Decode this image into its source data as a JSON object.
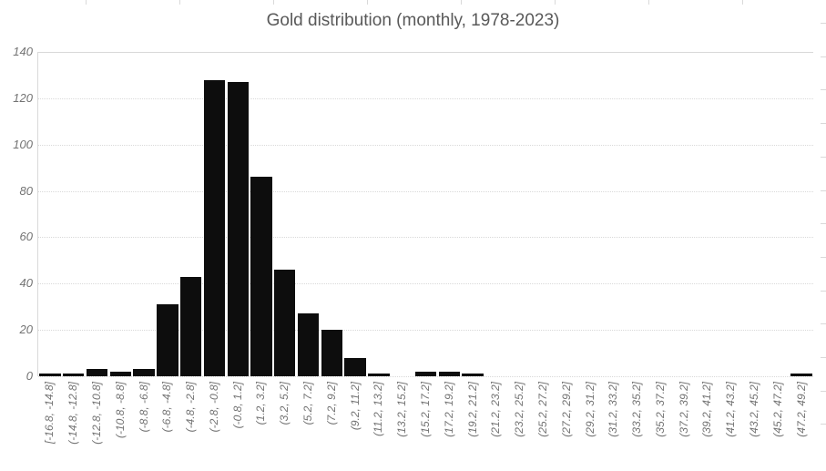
{
  "chart_data": {
    "type": "bar",
    "title": "Gold distribution (monthly, 1978-2023)",
    "xlabel": "",
    "ylabel": "",
    "categories": [
      "[-16.8, -14.8]",
      "(-14.8, -12.8]",
      "(-12.8, -10.8]",
      "(-10.8, -8.8]",
      "(-8.8, -6.8]",
      "(-6.8, -4.8]",
      "(-4.8, -2.8]",
      "(-2.8, -0.8]",
      "(-0.8, 1.2]",
      "(1.2, 3.2]",
      "(3.2, 5.2]",
      "(5.2, 7.2]",
      "(7.2, 9.2]",
      "(9.2, 11.2]",
      "(11.2, 13.2]",
      "(13.2, 15.2]",
      "(15.2, 17.2]",
      "(17.2, 19.2]",
      "(19.2, 21.2]",
      "(21.2, 23.2]",
      "(23.2, 25.2]",
      "(25.2, 27.2]",
      "(27.2, 29.2]",
      "(29.2, 31.2]",
      "(31.2, 33.2]",
      "(33.2, 35.2]",
      "(35.2, 37.2]",
      "(37.2, 39.2]",
      "(39.2, 41.2]",
      "(41.2, 43.2]",
      "(43.2, 45.2]",
      "(45.2, 47.2]",
      "(47.2, 49.2]"
    ],
    "values": [
      1,
      1,
      3,
      2,
      3,
      31,
      43,
      128,
      127,
      86,
      46,
      27,
      20,
      8,
      1,
      0,
      2,
      2,
      1,
      0,
      0,
      0,
      0,
      0,
      0,
      0,
      0,
      0,
      0,
      0,
      0,
      0,
      1
    ],
    "ylim": [
      0,
      140
    ],
    "yticks": [
      0,
      20,
      40,
      60,
      80,
      100,
      120,
      140
    ],
    "grid": true,
    "legend": false,
    "colors": {
      "bar": "#0d0d0d",
      "title": "#595959",
      "axis_labels": "#737373",
      "gridlines": "#d9d9d9",
      "background": "#ffffff"
    }
  }
}
